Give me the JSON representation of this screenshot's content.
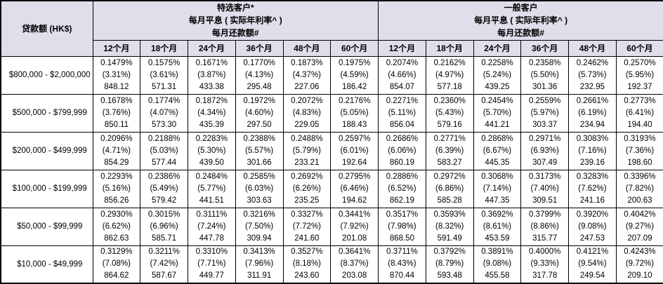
{
  "colors": {
    "header_bg": "#e0deeb",
    "border": "#000000",
    "row_bg": "#ffffff"
  },
  "table": {
    "loan_amount_header": "贷款额 (HK$)",
    "groups": [
      {
        "title": "特选客户*",
        "subtitle1": "每月平息 ( 实际年利率^ )",
        "subtitle2": "每月还款额#"
      },
      {
        "title": "一般客户",
        "subtitle1": "每月平息 ( 实际年利率^ )",
        "subtitle2": "每月还款额#"
      }
    ],
    "tenor_headers": [
      "12个月",
      "18个月",
      "24个月",
      "36个月",
      "48个月",
      "60个月"
    ],
    "rows": [
      {
        "loan_range": "$800,000 - $2,000,000",
        "special": [
          {
            "flat_rate": "0.1479%",
            "apr": "(3.31%)",
            "repayment": "848.12"
          },
          {
            "flat_rate": "0.1575%",
            "apr": "(3.61%)",
            "repayment": "571.31"
          },
          {
            "flat_rate": "0.1671%",
            "apr": "(3.87%)",
            "repayment": "433.38"
          },
          {
            "flat_rate": "0.1770%",
            "apr": "(4.13%)",
            "repayment": "295.48"
          },
          {
            "flat_rate": "0.1873%",
            "apr": "(4.37%)",
            "repayment": "227.06"
          },
          {
            "flat_rate": "0.1975%",
            "apr": "(4.59%)",
            "repayment": "186.42"
          }
        ],
        "general": [
          {
            "flat_rate": "0.2074%",
            "apr": "(4.66%)",
            "repayment": "854.07"
          },
          {
            "flat_rate": "0.2162%",
            "apr": "(4.97%)",
            "repayment": "577.18"
          },
          {
            "flat_rate": "0.2258%",
            "apr": "(5.24%)",
            "repayment": "439.25"
          },
          {
            "flat_rate": "0.2358%",
            "apr": "(5.50%)",
            "repayment": "301.36"
          },
          {
            "flat_rate": "0.2462%",
            "apr": "(5.73%)",
            "repayment": "232.95"
          },
          {
            "flat_rate": "0.2570%",
            "apr": "(5.95%)",
            "repayment": "192.37"
          }
        ]
      },
      {
        "loan_range": "$500,000 - $799,999",
        "special": [
          {
            "flat_rate": "0.1678%",
            "apr": "(3.76%)",
            "repayment": "850.11"
          },
          {
            "flat_rate": "0.1774%",
            "apr": "(4.07%)",
            "repayment": "573.30"
          },
          {
            "flat_rate": "0.1872%",
            "apr": "(4.34%)",
            "repayment": "435.39"
          },
          {
            "flat_rate": "0.1972%",
            "apr": "(4.60%)",
            "repayment": "297.50"
          },
          {
            "flat_rate": "0.2072%",
            "apr": "(4.83%)",
            "repayment": "229.05"
          },
          {
            "flat_rate": "0.2176%",
            "apr": "(5.05%)",
            "repayment": "188.43"
          }
        ],
        "general": [
          {
            "flat_rate": "0.2271%",
            "apr": "(5.11%)",
            "repayment": "856.04"
          },
          {
            "flat_rate": "0.2360%",
            "apr": "(5.43%)",
            "repayment": "579.16"
          },
          {
            "flat_rate": "0.2454%",
            "apr": "(5.70%)",
            "repayment": "441.21"
          },
          {
            "flat_rate": "0.2559%",
            "apr": "(5.97%)",
            "repayment": "303.37"
          },
          {
            "flat_rate": "0.2661%",
            "apr": "(6.19%)",
            "repayment": "234.94"
          },
          {
            "flat_rate": "0.2773%",
            "apr": "(6.41%)",
            "repayment": "194.40"
          }
        ]
      },
      {
        "loan_range": "$200,000 - $499,999",
        "special": [
          {
            "flat_rate": "0.2096%",
            "apr": "(4.71%)",
            "repayment": "854.29"
          },
          {
            "flat_rate": "0.2188%",
            "apr": "(5.03%)",
            "repayment": "577.44"
          },
          {
            "flat_rate": "0.2283%",
            "apr": "(5.30%)",
            "repayment": "439.50"
          },
          {
            "flat_rate": "0.2388%",
            "apr": "(5.57%)",
            "repayment": "301.66"
          },
          {
            "flat_rate": "0.2488%",
            "apr": "(5.79%)",
            "repayment": "233.21"
          },
          {
            "flat_rate": "0.2597%",
            "apr": "(6.01%)",
            "repayment": "192.64"
          }
        ],
        "general": [
          {
            "flat_rate": "0.2686%",
            "apr": "(6.06%)",
            "repayment": "860.19"
          },
          {
            "flat_rate": "0.2771%",
            "apr": "(6.39%)",
            "repayment": "583.27"
          },
          {
            "flat_rate": "0.2868%",
            "apr": "(6.67%)",
            "repayment": "445.35"
          },
          {
            "flat_rate": "0.2971%",
            "apr": "(6.93%)",
            "repayment": "307.49"
          },
          {
            "flat_rate": "0.3083%",
            "apr": "(7.16%)",
            "repayment": "239.16"
          },
          {
            "flat_rate": "0.3193%",
            "apr": "(7.36%)",
            "repayment": "198.60"
          }
        ]
      },
      {
        "loan_range": "$100,000 - $199,999",
        "special": [
          {
            "flat_rate": "0.2293%",
            "apr": "(5.16%)",
            "repayment": "856.26"
          },
          {
            "flat_rate": "0.2386%",
            "apr": "(5.49%)",
            "repayment": "579.42"
          },
          {
            "flat_rate": "0.2484%",
            "apr": "(5.77%)",
            "repayment": "441.51"
          },
          {
            "flat_rate": "0.2585%",
            "apr": "(6.03%)",
            "repayment": "303.63"
          },
          {
            "flat_rate": "0.2692%",
            "apr": "(6.26%)",
            "repayment": "235.25"
          },
          {
            "flat_rate": "0.2795%",
            "apr": "(6.46%)",
            "repayment": "194.62"
          }
        ],
        "general": [
          {
            "flat_rate": "0.2886%",
            "apr": "(6.52%)",
            "repayment": "862.19"
          },
          {
            "flat_rate": "0.2972%",
            "apr": "(6.86%)",
            "repayment": "585.28"
          },
          {
            "flat_rate": "0.3068%",
            "apr": "(7.14%)",
            "repayment": "447.35"
          },
          {
            "flat_rate": "0.3173%",
            "apr": "(7.40%)",
            "repayment": "309.51"
          },
          {
            "flat_rate": "0.3283%",
            "apr": "(7.62%)",
            "repayment": "241.16"
          },
          {
            "flat_rate": "0.3396%",
            "apr": "(7.82%)",
            "repayment": "200.63"
          }
        ]
      },
      {
        "loan_range": "$50,000 - $99,999",
        "special": [
          {
            "flat_rate": "0.2930%",
            "apr": "(6.62%)",
            "repayment": "862.63"
          },
          {
            "flat_rate": "0.3015%",
            "apr": "(6.96%)",
            "repayment": "585.71"
          },
          {
            "flat_rate": "0.3111%",
            "apr": "(7.24%)",
            "repayment": "447.78"
          },
          {
            "flat_rate": "0.3216%",
            "apr": "(7.50%)",
            "repayment": "309.94"
          },
          {
            "flat_rate": "0.3327%",
            "apr": "(7.72%)",
            "repayment": "241.60"
          },
          {
            "flat_rate": "0.3441%",
            "apr": "(7.92%)",
            "repayment": "201.08"
          }
        ],
        "general": [
          {
            "flat_rate": "0.3517%",
            "apr": "(7.98%)",
            "repayment": "868.50"
          },
          {
            "flat_rate": "0.3593%",
            "apr": "(8.32%)",
            "repayment": "591.49"
          },
          {
            "flat_rate": "0.3692%",
            "apr": "(8.61%)",
            "repayment": "453.59"
          },
          {
            "flat_rate": "0.3799%",
            "apr": "(8.86%)",
            "repayment": "315.77"
          },
          {
            "flat_rate": "0.3920%",
            "apr": "(9.08%)",
            "repayment": "247.53"
          },
          {
            "flat_rate": "0.4042%",
            "apr": "(9.27%)",
            "repayment": "207.09"
          }
        ]
      },
      {
        "loan_range": "$10,000 - $49,999",
        "special": [
          {
            "flat_rate": "0.3129%",
            "apr": "(7.08%)",
            "repayment": "864.62"
          },
          {
            "flat_rate": "0.3211%",
            "apr": "(7.42%)",
            "repayment": "587.67"
          },
          {
            "flat_rate": "0.3310%",
            "apr": "(7.71%)",
            "repayment": "449.77"
          },
          {
            "flat_rate": "0.3413%",
            "apr": "(7.96%)",
            "repayment": "311.91"
          },
          {
            "flat_rate": "0.3527%",
            "apr": "(8.18%)",
            "repayment": "243.60"
          },
          {
            "flat_rate": "0.3641%",
            "apr": "(8.37%)",
            "repayment": "203.08"
          }
        ],
        "general": [
          {
            "flat_rate": "0.3711%",
            "apr": "(8.43%)",
            "repayment": "870.44"
          },
          {
            "flat_rate": "0.3792%",
            "apr": "(8.79%)",
            "repayment": "593.48"
          },
          {
            "flat_rate": "0.3891%",
            "apr": "(9.08%)",
            "repayment": "455.58"
          },
          {
            "flat_rate": "0.4000%",
            "apr": "(9.33%)",
            "repayment": "317.78"
          },
          {
            "flat_rate": "0.4121%",
            "apr": "(9.54%)",
            "repayment": "249.54"
          },
          {
            "flat_rate": "0.4243%",
            "apr": "(9.72%)",
            "repayment": "209.10"
          }
        ]
      }
    ]
  }
}
